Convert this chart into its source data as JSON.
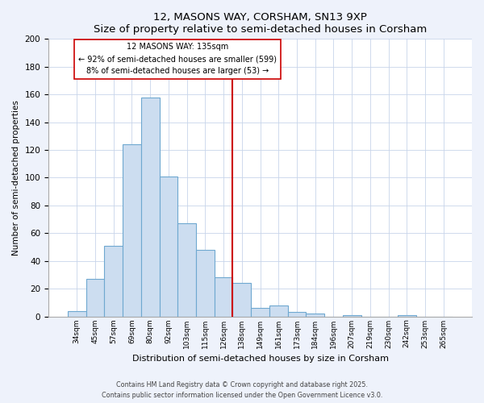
{
  "title": "12, MASONS WAY, CORSHAM, SN13 9XP",
  "subtitle": "Size of property relative to semi-detached houses in Corsham",
  "xlabel": "Distribution of semi-detached houses by size in Corsham",
  "ylabel": "Number of semi-detached properties",
  "bin_labels": [
    "34sqm",
    "45sqm",
    "57sqm",
    "69sqm",
    "80sqm",
    "92sqm",
    "103sqm",
    "115sqm",
    "126sqm",
    "138sqm",
    "149sqm",
    "161sqm",
    "173sqm",
    "184sqm",
    "196sqm",
    "207sqm",
    "219sqm",
    "230sqm",
    "242sqm",
    "253sqm",
    "265sqm"
  ],
  "bar_heights": [
    4,
    27,
    51,
    124,
    158,
    101,
    67,
    48,
    28,
    24,
    6,
    8,
    3,
    2,
    0,
    1,
    0,
    0,
    1,
    0,
    0
  ],
  "bar_color": "#ccddf0",
  "bar_edge_color": "#6fa8d0",
  "vline_x_idx": 9,
  "vline_label": "12 MASONS WAY: 135sqm",
  "annotation_line1": "← 92% of semi-detached houses are smaller (599)",
  "annotation_line2": "8% of semi-detached houses are larger (53) →",
  "vline_color": "#cc0000",
  "ylim": [
    0,
    200
  ],
  "yticks": [
    0,
    20,
    40,
    60,
    80,
    100,
    120,
    140,
    160,
    180,
    200
  ],
  "bg_color": "#eef2fb",
  "plot_bg_color": "#ffffff",
  "footer_line1": "Contains HM Land Registry data © Crown copyright and database right 2025.",
  "footer_line2": "Contains public sector information licensed under the Open Government Licence v3.0."
}
